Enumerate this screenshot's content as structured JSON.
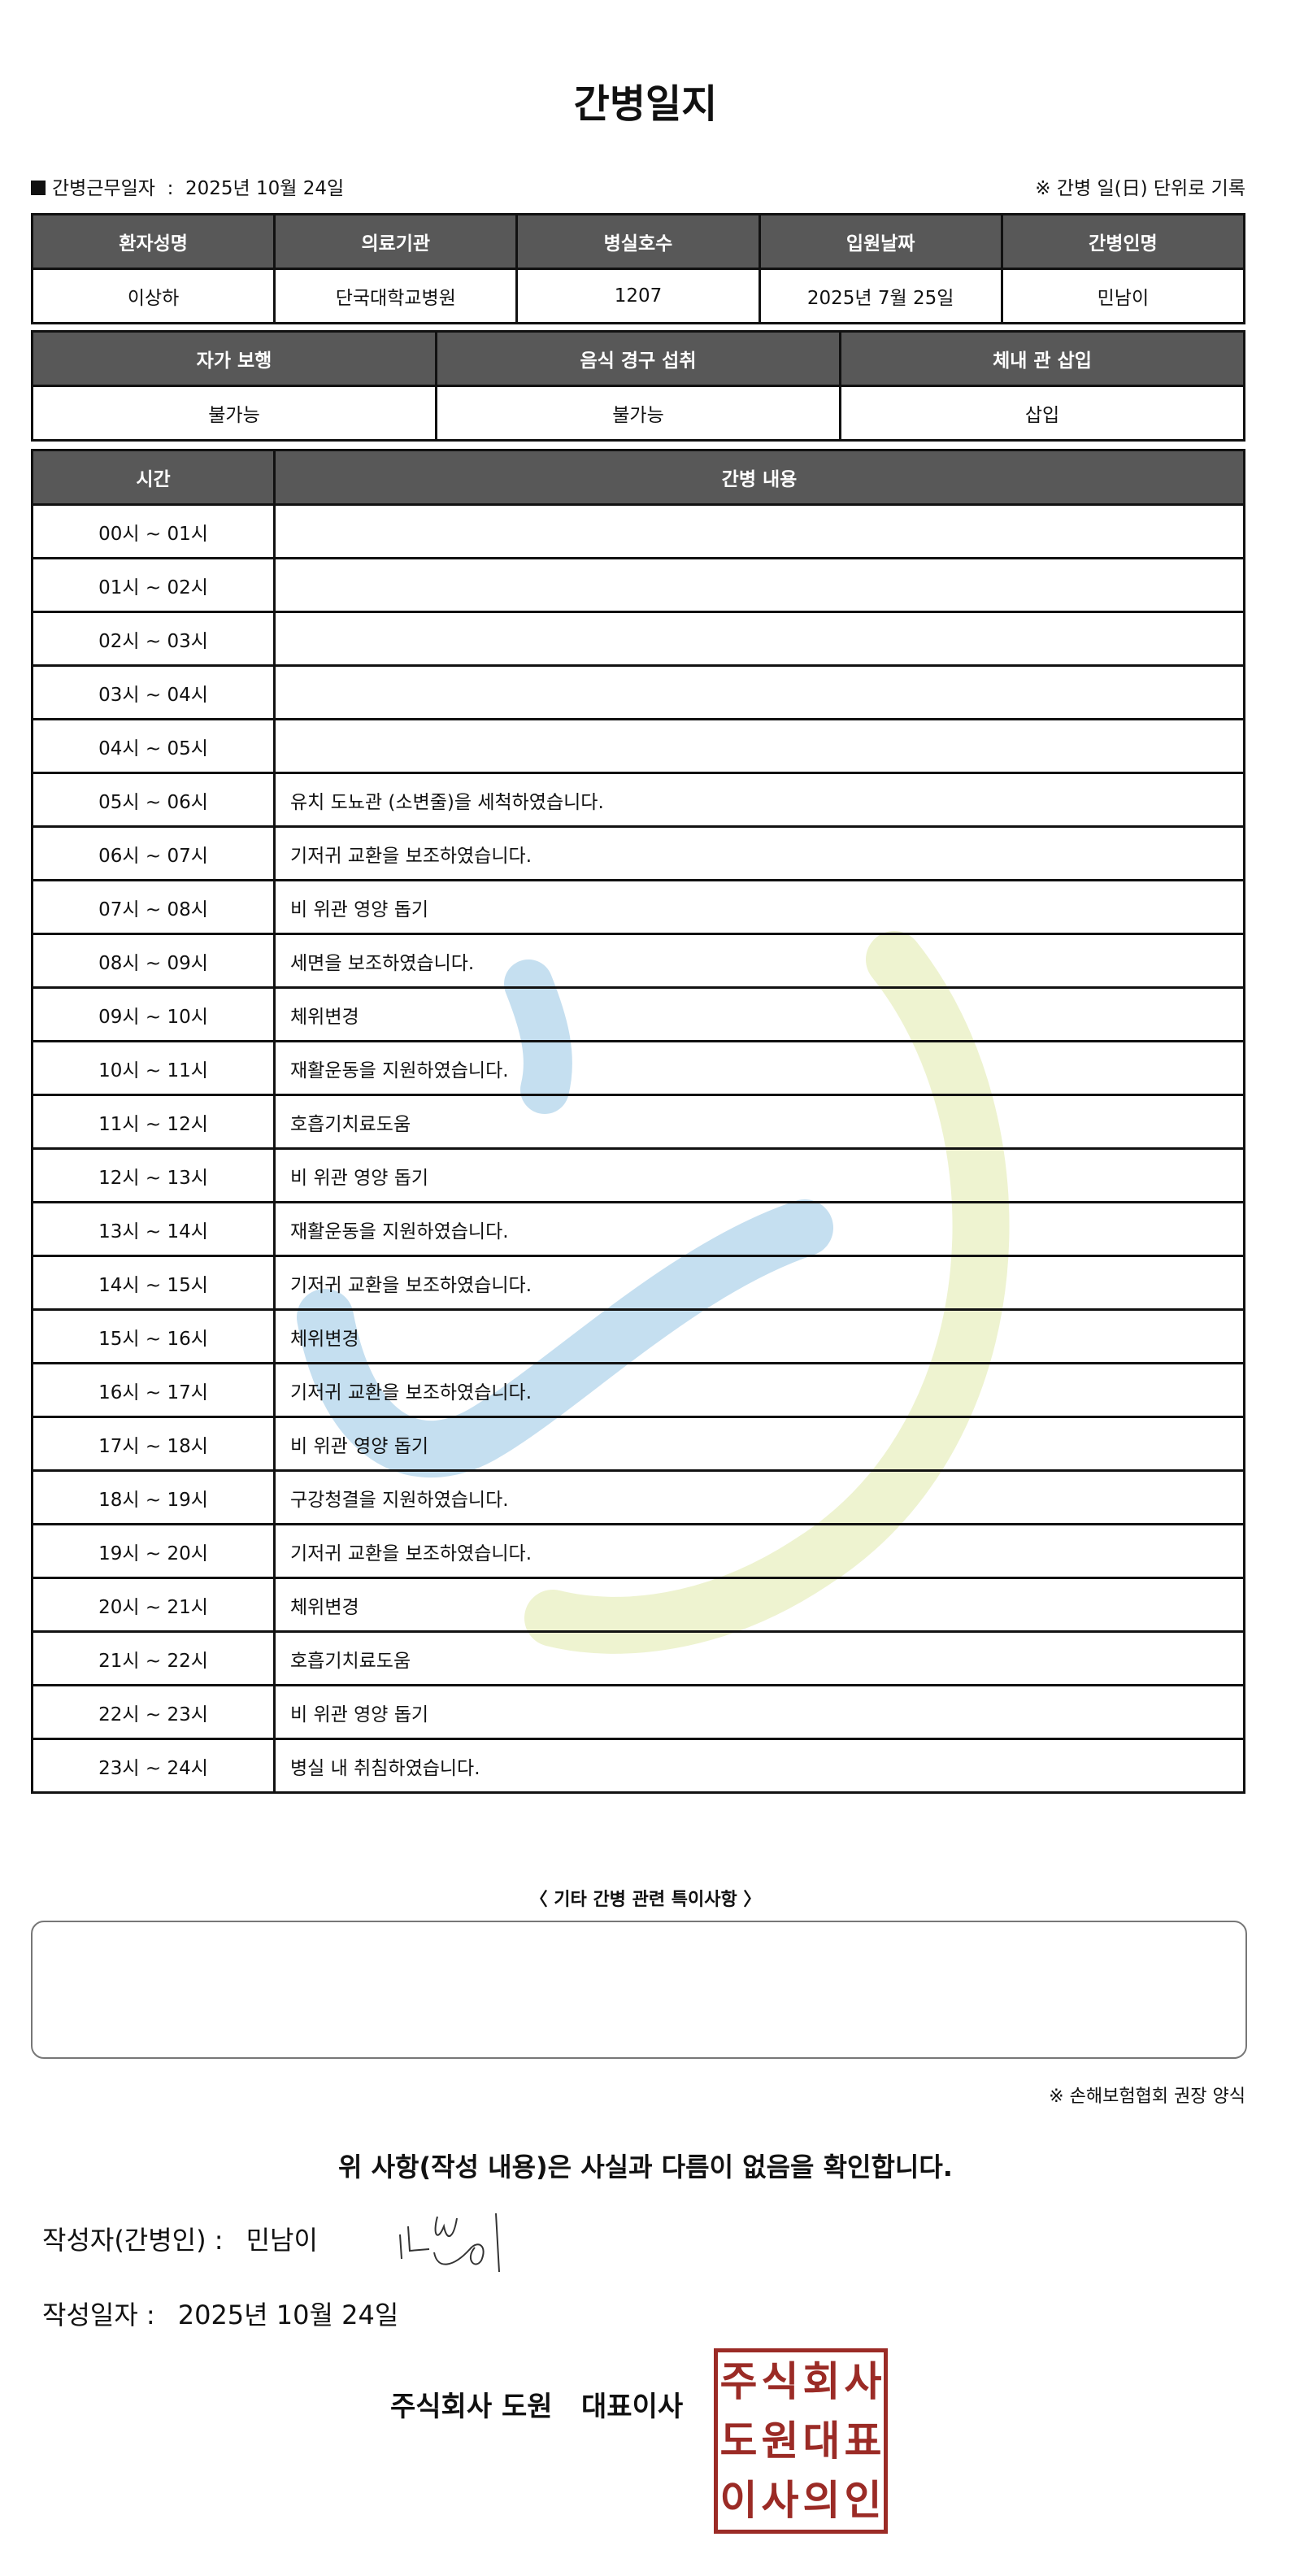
{
  "title": "간병일지",
  "meta": {
    "work_date_label": "간병근무일자",
    "work_date": "2025년 10월 24일",
    "note": "※ 간병 일(日) 단위로 기록"
  },
  "patient_table": {
    "headers": [
      "환자성명",
      "의료기관",
      "병실호수",
      "입원날짜",
      "간병인명"
    ],
    "values": [
      "이상하",
      "단국대학교병원",
      "1207",
      "2025년 7월 25일",
      "민남이"
    ]
  },
  "status_table": {
    "headers": [
      "자가 보행",
      "음식 경구 섭취",
      "체내 관 삽입"
    ],
    "values": [
      "불가능",
      "불가능",
      "삽입"
    ]
  },
  "log_table": {
    "headers": [
      "시간",
      "간병 내용"
    ],
    "rows": [
      {
        "time": "00시 ~ 01시",
        "content": ""
      },
      {
        "time": "01시 ~ 02시",
        "content": ""
      },
      {
        "time": "02시 ~ 03시",
        "content": ""
      },
      {
        "time": "03시 ~ 04시",
        "content": ""
      },
      {
        "time": "04시 ~ 05시",
        "content": ""
      },
      {
        "time": "05시 ~ 06시",
        "content": "유치 도뇨관 (소변줄)을 세척하였습니다."
      },
      {
        "time": "06시 ~ 07시",
        "content": "기저귀 교환을 보조하였습니다."
      },
      {
        "time": "07시 ~ 08시",
        "content": "비 위관 영양 돕기"
      },
      {
        "time": "08시 ~ 09시",
        "content": "세면을 보조하였습니다."
      },
      {
        "time": "09시 ~ 10시",
        "content": "체위변경"
      },
      {
        "time": "10시 ~ 11시",
        "content": "재활운동을 지원하였습니다."
      },
      {
        "time": "11시 ~ 12시",
        "content": "호흡기치료도움"
      },
      {
        "time": "12시 ~ 13시",
        "content": "비 위관 영양 돕기"
      },
      {
        "time": "13시 ~ 14시",
        "content": "재활운동을 지원하였습니다."
      },
      {
        "time": "14시 ~ 15시",
        "content": "기저귀 교환을 보조하였습니다."
      },
      {
        "time": "15시 ~ 16시",
        "content": "체위변경"
      },
      {
        "time": "16시 ~ 17시",
        "content": "기저귀 교환을 보조하였습니다."
      },
      {
        "time": "17시 ~ 18시",
        "content": "비 위관 영양 돕기"
      },
      {
        "time": "18시 ~ 19시",
        "content": "구강청결을 지원하였습니다."
      },
      {
        "time": "19시 ~ 20시",
        "content": "기저귀 교환을 보조하였습니다."
      },
      {
        "time": "20시 ~ 21시",
        "content": "체위변경"
      },
      {
        "time": "21시 ~ 22시",
        "content": "호흡기치료도움"
      },
      {
        "time": "22시 ~ 23시",
        "content": "비 위관 영양 돕기"
      },
      {
        "time": "23시 ~ 24시",
        "content": "병실 내 취침하였습니다."
      }
    ]
  },
  "notes": {
    "title": "〈 기타 간병 관련 특이사항 〉",
    "value": ""
  },
  "form_note": "※ 손해보험협회 권장 양식",
  "confirmation": "위 사항(작성 내용)은 사실과 다름이 없음을 확인합니다.",
  "writer": {
    "label": "작성자(간병인) :",
    "name": "민남이"
  },
  "written_date": {
    "label": "작성일자 :",
    "value": "2025년 10월 24일"
  },
  "company": "주식회사 도원   대표이사",
  "stamp_text": "주식회사도원대표이사의인",
  "colors": {
    "header_bg": "#585858",
    "stamp": "#9b2b26",
    "watermark_blue": "#c5dff0",
    "watermark_green": "#eef3d0"
  }
}
